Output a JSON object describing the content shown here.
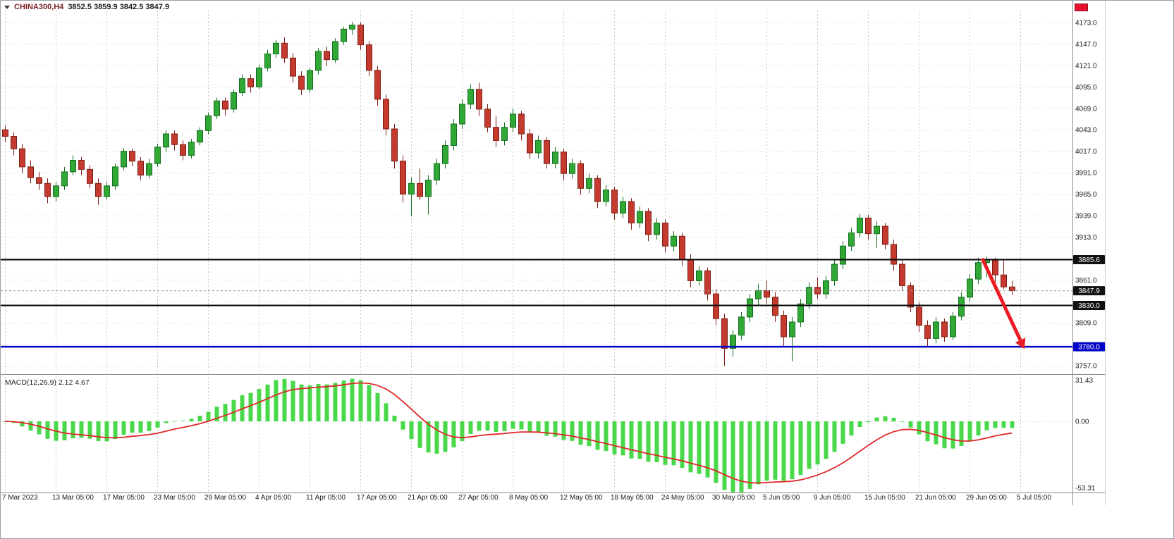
{
  "window": {
    "symbol": "CHINA300,H4",
    "ohlc": "3852.5 3859.9 3842.5 3847.9"
  },
  "colors": {
    "up_fill": "#31a836",
    "up_stroke": "#136f1e",
    "down_fill": "#c43a2f",
    "down_stroke": "#7e1e15",
    "macd_hist": "#49d849",
    "macd_signal": "#e02828",
    "grid_h": "#dadada",
    "grid_v": "#c6c6c6",
    "level_black": "#000000",
    "level_blue": "#0202c8",
    "badge_dark": "#111111",
    "badge_blue": "#0202c8",
    "arrow": "#eb1c24",
    "axis_text": "#1a1a1a"
  },
  "price_axis": {
    "max": 4173,
    "min": 3757,
    "step": 26,
    "ticks": [
      4173,
      4147,
      4121,
      4095,
      4069,
      4043,
      4017,
      3991,
      3965,
      3939,
      3913,
      3887,
      3861,
      3835,
      3809,
      3783,
      3757
    ],
    "labels": [
      {
        "p": 4173,
        "t": "4173.0"
      },
      {
        "p": 4147,
        "t": "4147.0"
      },
      {
        "p": 4121,
        "t": "4121.0"
      },
      {
        "p": 4095,
        "t": "4095.0"
      },
      {
        "p": 4069,
        "t": "4069.0"
      },
      {
        "p": 4043,
        "t": "4043.0"
      },
      {
        "p": 4017,
        "t": "4017.0"
      },
      {
        "p": 3991,
        "t": "3991.0"
      },
      {
        "p": 3965,
        "t": "3965.0"
      },
      {
        "p": 3939,
        "t": "3939.0"
      },
      {
        "p": 3913,
        "t": "3913.0"
      },
      {
        "p": 3861,
        "t": "3861.0"
      },
      {
        "p": 3809,
        "t": "3809.0"
      },
      {
        "p": 3757,
        "t": "3757.0"
      }
    ]
  },
  "price_scale_badges": [
    {
      "value": 3885.6,
      "text": "3885.6",
      "bg": "#111111"
    },
    {
      "value": 3847.9,
      "text": "3847.9",
      "bg": "#111111"
    },
    {
      "value": 3830.0,
      "text": "3830.0",
      "bg": "#111111"
    },
    {
      "value": 3780.0,
      "text": "3780.0",
      "bg": "#0202c8"
    }
  ],
  "hlines": [
    {
      "price": 3885.6,
      "color": "#000000",
      "width": 2
    },
    {
      "price": 3830.0,
      "color": "#000000",
      "width": 2
    },
    {
      "price": 3780.0,
      "color": "#0202c8",
      "width": 2.5
    }
  ],
  "current_price": {
    "value": 3847.9,
    "label": "3847.9"
  },
  "time_axis": {
    "labels": [
      "7 Mar 2023",
      "13 Mar 05:00",
      "17 Mar 05:00",
      "23 Mar 05:00",
      "29 Mar 05:00",
      "4 Apr 05:00",
      "11 Apr 05:00",
      "17 Apr 05:00",
      "21 Apr 05:00",
      "27 Apr 05:00",
      "8 May 05:00",
      "12 May 05:00",
      "18 May 05:00",
      "24 May 05:00",
      "30 May 05:00",
      "5 Jun 05:00",
      "9 Jun 05:00",
      "15 Jun 05:00",
      "21 Jun 05:00",
      "29 Jun 05:00",
      "5 Jul 05:00"
    ]
  },
  "macd": {
    "name": "MACD(12,26,9)",
    "main": "2.12",
    "signal": "4.67",
    "scale": [
      {
        "v": 31.43,
        "t": "31.43"
      },
      {
        "v": 0,
        "t": "0.00"
      },
      {
        "v": -53.31,
        "t": "-53.31"
      }
    ]
  },
  "chart_data": {
    "type": "candlestick",
    "symbol": "CHINA300",
    "timeframe": "H4",
    "y_range": [
      3757,
      4173
    ],
    "last_ohlc": {
      "open": 3852.5,
      "high": 3859.9,
      "low": 3842.5,
      "close": 3847.9
    },
    "levels": [
      3885.6,
      3830.0,
      3780.0
    ],
    "candles": [
      [
        4043,
        4048,
        4028,
        4035
      ],
      [
        4035,
        4040,
        4012,
        4020
      ],
      [
        4020,
        4026,
        3990,
        3998
      ],
      [
        3998,
        4006,
        3978,
        3985
      ],
      [
        3985,
        3992,
        3970,
        3978
      ],
      [
        3978,
        3984,
        3954,
        3962
      ],
      [
        3962,
        3980,
        3956,
        3975
      ],
      [
        3975,
        3998,
        3970,
        3992
      ],
      [
        3992,
        4012,
        3988,
        4006
      ],
      [
        4006,
        4010,
        3988,
        3995
      ],
      [
        3995,
        4000,
        3972,
        3978
      ],
      [
        3978,
        3984,
        3952,
        3962
      ],
      [
        3962,
        3980,
        3958,
        3975
      ],
      [
        3975,
        4002,
        3970,
        3998
      ],
      [
        3998,
        4021,
        3994,
        4017
      ],
      [
        4017,
        4020,
        3999,
        4005
      ],
      [
        4005,
        4010,
        3982,
        3988
      ],
      [
        3988,
        4008,
        3984,
        4002
      ],
      [
        4002,
        4026,
        3998,
        4022
      ],
      [
        4022,
        4042,
        4016,
        4038
      ],
      [
        4038,
        4042,
        4018,
        4025
      ],
      [
        4025,
        4030,
        4006,
        4012
      ],
      [
        4012,
        4032,
        4008,
        4028
      ],
      [
        4028,
        4046,
        4024,
        4042
      ],
      [
        4042,
        4064,
        4038,
        4060
      ],
      [
        4060,
        4082,
        4056,
        4078
      ],
      [
        4078,
        4082,
        4060,
        4068
      ],
      [
        4068,
        4092,
        4064,
        4088
      ],
      [
        4088,
        4110,
        4084,
        4105
      ],
      [
        4105,
        4110,
        4088,
        4095
      ],
      [
        4095,
        4122,
        4092,
        4118
      ],
      [
        4118,
        4140,
        4114,
        4135
      ],
      [
        4135,
        4152,
        4130,
        4148
      ],
      [
        4148,
        4155,
        4124,
        4130
      ],
      [
        4130,
        4136,
        4100,
        4108
      ],
      [
        4108,
        4114,
        4085,
        4092
      ],
      [
        4092,
        4118,
        4088,
        4115
      ],
      [
        4115,
        4142,
        4110,
        4138
      ],
      [
        4138,
        4144,
        4120,
        4128
      ],
      [
        4128,
        4154,
        4124,
        4150
      ],
      [
        4150,
        4168,
        4146,
        4165
      ],
      [
        4165,
        4174,
        4158,
        4170
      ],
      [
        4170,
        4173,
        4140,
        4146
      ],
      [
        4146,
        4150,
        4108,
        4115
      ],
      [
        4115,
        4120,
        4072,
        4080
      ],
      [
        4080,
        4086,
        4036,
        4044
      ],
      [
        4044,
        4050,
        3996,
        4005
      ],
      [
        4005,
        4012,
        3955,
        3965
      ],
      [
        3965,
        3985,
        3938,
        3978
      ],
      [
        3978,
        3996,
        3958,
        3962
      ],
      [
        3962,
        3988,
        3940,
        3982
      ],
      [
        3982,
        4008,
        3976,
        4002
      ],
      [
        4002,
        4030,
        3996,
        4024
      ],
      [
        4024,
        4056,
        4018,
        4050
      ],
      [
        4050,
        4080,
        4044,
        4074
      ],
      [
        4074,
        4098,
        4068,
        4092
      ],
      [
        4092,
        4100,
        4060,
        4068
      ],
      [
        4068,
        4074,
        4040,
        4046
      ],
      [
        4046,
        4060,
        4022,
        4030
      ],
      [
        4030,
        4052,
        4024,
        4046
      ],
      [
        4046,
        4069,
        4040,
        4062
      ],
      [
        4062,
        4066,
        4030,
        4038
      ],
      [
        4038,
        4044,
        4008,
        4015
      ],
      [
        4015,
        4036,
        4008,
        4030
      ],
      [
        4030,
        4034,
        3996,
        4002
      ],
      [
        4002,
        4022,
        3996,
        4016
      ],
      [
        4016,
        4020,
        3982,
        3990
      ],
      [
        3990,
        4008,
        3984,
        4002
      ],
      [
        4002,
        4006,
        3964,
        3972
      ],
      [
        3972,
        3990,
        3966,
        3984
      ],
      [
        3984,
        3988,
        3948,
        3956
      ],
      [
        3956,
        3976,
        3950,
        3970
      ],
      [
        3970,
        3974,
        3934,
        3942
      ],
      [
        3942,
        3962,
        3936,
        3956
      ],
      [
        3956,
        3960,
        3922,
        3930
      ],
      [
        3930,
        3950,
        3924,
        3944
      ],
      [
        3944,
        3948,
        3908,
        3916
      ],
      [
        3916,
        3936,
        3910,
        3930
      ],
      [
        3930,
        3934,
        3894,
        3902
      ],
      [
        3902,
        3920,
        3896,
        3914
      ],
      [
        3914,
        3918,
        3878,
        3886
      ],
      [
        3886,
        3892,
        3852,
        3860
      ],
      [
        3860,
        3878,
        3854,
        3872
      ],
      [
        3872,
        3876,
        3836,
        3844
      ],
      [
        3844,
        3850,
        3806,
        3814
      ],
      [
        3814,
        3820,
        3757,
        3778
      ],
      [
        3778,
        3800,
        3768,
        3794
      ],
      [
        3794,
        3822,
        3788,
        3816
      ],
      [
        3816,
        3844,
        3810,
        3838
      ],
      [
        3838,
        3856,
        3830,
        3848
      ],
      [
        3848,
        3860,
        3832,
        3840
      ],
      [
        3840,
        3846,
        3810,
        3818
      ],
      [
        3818,
        3824,
        3780,
        3792
      ],
      [
        3792,
        3816,
        3762,
        3810
      ],
      [
        3810,
        3838,
        3804,
        3832
      ],
      [
        3832,
        3858,
        3826,
        3852
      ],
      [
        3852,
        3864,
        3838,
        3844
      ],
      [
        3844,
        3866,
        3838,
        3860
      ],
      [
        3860,
        3886,
        3854,
        3880
      ],
      [
        3880,
        3908,
        3874,
        3902
      ],
      [
        3902,
        3924,
        3896,
        3918
      ],
      [
        3918,
        3941,
        3912,
        3936
      ],
      [
        3936,
        3940,
        3910,
        3917
      ],
      [
        3917,
        3932,
        3900,
        3926
      ],
      [
        3926,
        3930,
        3898,
        3904
      ],
      [
        3904,
        3910,
        3872,
        3880
      ],
      [
        3880,
        3886,
        3848,
        3854
      ],
      [
        3854,
        3858,
        3822,
        3828
      ],
      [
        3828,
        3834,
        3798,
        3806
      ],
      [
        3806,
        3812,
        3780,
        3790
      ],
      [
        3790,
        3816,
        3784,
        3810
      ],
      [
        3810,
        3814,
        3786,
        3792
      ],
      [
        3792,
        3822,
        3788,
        3817
      ],
      [
        3817,
        3846,
        3812,
        3840
      ],
      [
        3840,
        3868,
        3834,
        3862
      ],
      [
        3862,
        3888,
        3856,
        3882
      ],
      [
        3882,
        3889,
        3864,
        3886
      ],
      [
        3886,
        3888,
        3858,
        3867
      ],
      [
        3867,
        3886,
        3850,
        3852.5
      ],
      [
        3852.5,
        3859.9,
        3842.5,
        3847.9
      ]
    ],
    "indicators": [
      {
        "type": "MACD",
        "fast": 12,
        "slow": 26,
        "signal": 9,
        "display_main": 2.12,
        "display_signal": 4.67,
        "scale_max": 31.43,
        "scale_min": -53.31
      }
    ],
    "annotations": [
      {
        "type": "arrow",
        "color": "red",
        "from_bar": 115.5,
        "from_price": 3887,
        "to_bar": 120,
        "to_price": 3788
      }
    ]
  }
}
